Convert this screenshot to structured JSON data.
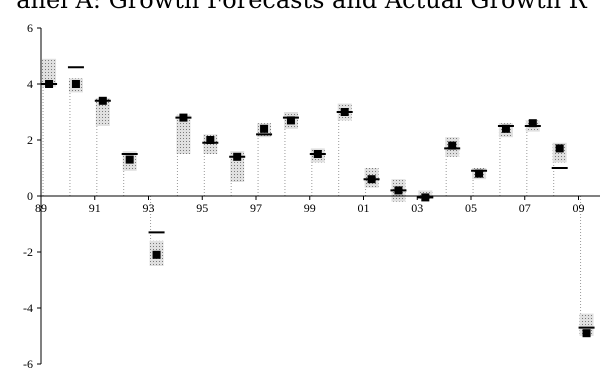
{
  "chart_data": {
    "type": "scatter",
    "title": "anel A: Growth Forecasts and Actual Growth R",
    "xlabel": "",
    "ylabel": "",
    "xlim": [
      1989,
      2009.8
    ],
    "ylim": [
      -6,
      6
    ],
    "x_ticks": [
      "89",
      "91",
      "93",
      "95",
      "97",
      "99",
      "01",
      "03",
      "05",
      "07",
      "09"
    ],
    "y_ticks": [
      "6",
      "4",
      "2",
      "0",
      "-2",
      "-4",
      "-6"
    ],
    "grid": false,
    "legend": "none",
    "colors": {
      "marker": "#000000",
      "band_fill": "#e0e0e0",
      "band_dot": "#7a7a7a",
      "axis": "#000000"
    },
    "x": [
      1989.3,
      1990.3,
      1991.3,
      1992.3,
      1993.3,
      1994.3,
      1995.3,
      1996.3,
      1997.3,
      1998.3,
      1999.3,
      2000.3,
      2001.3,
      2002.3,
      2003.3,
      2004.3,
      2005.3,
      2006.3,
      2007.3,
      2008.3,
      2009.3
    ],
    "series": [
      {
        "values": [
          4.0,
          4.0,
          3.4,
          1.3,
          -2.1,
          2.8,
          2.0,
          1.4,
          2.4,
          2.7,
          1.5,
          3.0,
          0.6,
          0.2,
          -0.05,
          1.8,
          0.8,
          2.4,
          2.6,
          1.7,
          -4.9
        ]
      },
      {
        "values": [
          4.0,
          4.6,
          3.4,
          1.5,
          -1.3,
          2.8,
          1.9,
          1.4,
          2.2,
          2.8,
          1.5,
          3.0,
          0.6,
          0.2,
          -0.05,
          1.7,
          0.9,
          2.5,
          2.5,
          1.0,
          -4.7
        ]
      }
    ],
    "band_low": [
      3.9,
      3.7,
      2.5,
      0.9,
      -2.5,
      1.5,
      1.5,
      0.5,
      2.1,
      2.4,
      1.2,
      2.7,
      0.3,
      -0.2,
      -0.1,
      1.4,
      0.6,
      2.1,
      2.3,
      1.2,
      -5.0
    ],
    "band_high": [
      4.9,
      4.2,
      3.5,
      1.6,
      -1.6,
      2.9,
      2.2,
      1.6,
      2.6,
      3.0,
      1.7,
      3.3,
      1.0,
      0.6,
      0.2,
      2.1,
      1.0,
      2.6,
      2.7,
      1.9,
      -4.2
    ]
  }
}
